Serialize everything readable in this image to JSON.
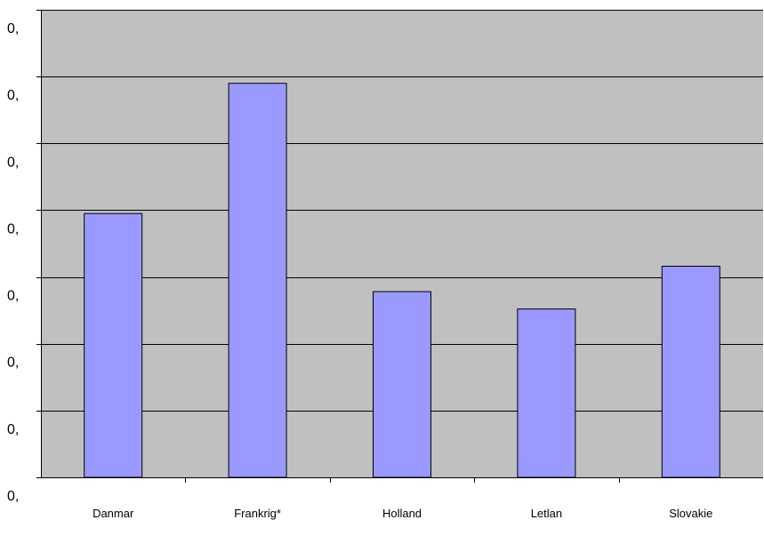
{
  "chart_data": {
    "type": "bar",
    "categories": [
      "Danmar",
      "Frankrig*",
      "Holland",
      "Letlan",
      "Slovakie"
    ],
    "values": [
      0.395,
      0.59,
      0.278,
      0.252,
      0.316
    ],
    "ylim": [
      0,
      0.7
    ],
    "yticks": [
      0,
      0.1,
      0.2,
      0.3,
      0.4,
      0.5,
      0.6,
      0.7
    ],
    "ytick_labels": [
      "0,",
      "0,",
      "0,",
      "0,",
      "0,",
      "0,",
      "0,",
      "0,"
    ],
    "grid": true,
    "legend": "none",
    "colors": {
      "plot_background": "#c0c0c0",
      "bar_fill": "#9999ff",
      "bar_stroke": "#000000",
      "gridline": "#000000"
    }
  }
}
